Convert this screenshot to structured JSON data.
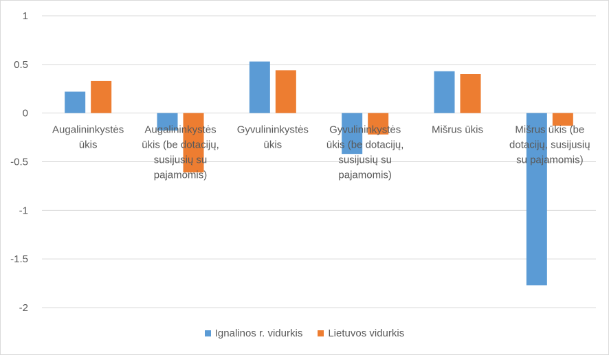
{
  "chart_data": {
    "type": "bar",
    "categories": [
      [
        "Augalininkystės",
        "ūkis"
      ],
      [
        "Augalininkystės",
        "ūkis (be dotacijų,",
        "susijusių su",
        "pajamomis)"
      ],
      [
        "Gyvulininkystės",
        "ūkis"
      ],
      [
        "Gyvulininkystės",
        "ūkis (be dotacijų,",
        "susijusių su",
        "pajamomis)"
      ],
      [
        "Mišrus ūkis"
      ],
      [
        "Mišrus ūkis (be",
        "dotacijų, susijusių",
        "su pajamomis)"
      ]
    ],
    "series": [
      {
        "name": "Ignalinos r. vidurkis",
        "color": "#5b9bd5",
        "values": [
          0.22,
          -0.18,
          0.53,
          -0.42,
          0.43,
          -1.77
        ]
      },
      {
        "name": "Lietuvos vidurkis",
        "color": "#ed7d31",
        "values": [
          0.33,
          -0.61,
          0.44,
          -0.22,
          0.4,
          -0.13
        ]
      }
    ],
    "ylim": [
      -2,
      1
    ],
    "yticks": [
      "1",
      "0.5",
      "0",
      "-0.5",
      "-1",
      "-1.5",
      "-2"
    ],
    "grid": true,
    "legend_position": "bottom"
  }
}
